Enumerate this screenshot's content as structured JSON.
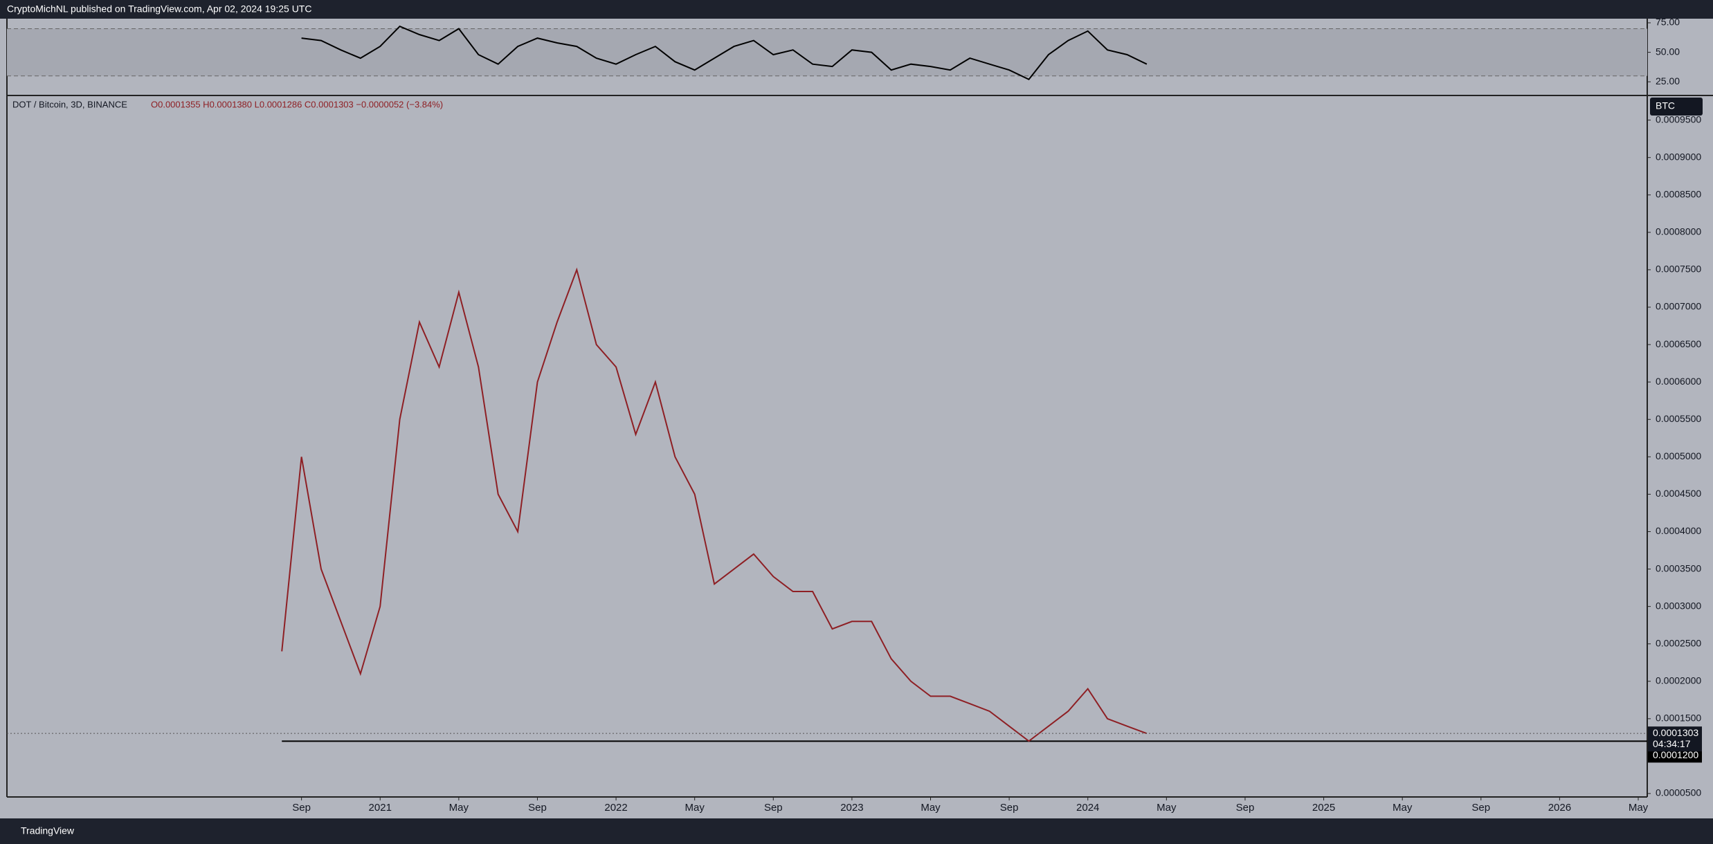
{
  "header": {
    "title": "CryptoMichNL published on TradingView.com, Apr 02, 2024 19:25 UTC"
  },
  "chart_data": [
    {
      "type": "line",
      "x": [
        "2020-08",
        "2020-09",
        "2020-10",
        "2020-11",
        "2020-12",
        "2021-01",
        "2021-02",
        "2021-03",
        "2021-04",
        "2021-05",
        "2021-06",
        "2021-07",
        "2021-08",
        "2021-09",
        "2021-10",
        "2021-11",
        "2021-12",
        "2022-01",
        "2022-02",
        "2022-03",
        "2022-04",
        "2022-05",
        "2022-06",
        "2022-07",
        "2022-08",
        "2022-09",
        "2022-10",
        "2022-11",
        "2022-12",
        "2023-01",
        "2023-02",
        "2023-03",
        "2023-04",
        "2023-05",
        "2023-06",
        "2023-07",
        "2023-08",
        "2023-09",
        "2023-10",
        "2023-11",
        "2023-12",
        "2024-01",
        "2024-02",
        "2024-03",
        "2024-04"
      ],
      "series": [
        {
          "color": "#000000",
          "values": [
            null,
            62,
            60,
            52,
            45,
            55,
            72,
            65,
            60,
            70,
            48,
            40,
            55,
            62,
            58,
            55,
            45,
            40,
            48,
            55,
            42,
            35,
            45,
            55,
            60,
            48,
            52,
            40,
            38,
            52,
            50,
            35,
            40,
            38,
            35,
            45,
            40,
            35,
            27,
            48,
            60,
            68,
            52,
            48,
            40
          ]
        }
      ],
      "band": [
        30,
        70
      ],
      "band_color": "#a5a8b1",
      "xlim": [
        "2019-07",
        "2026-05"
      ],
      "ylim": [
        14,
        78.5
      ],
      "yticks": [
        {
          "value": 75,
          "label": "75.00"
        },
        {
          "value": 50,
          "label": "50.00"
        },
        {
          "value": 25,
          "label": "25.00"
        }
      ]
    },
    {
      "type": "line",
      "title": "DOT / Bitcoin, 3D, BINANCE",
      "ohlc_text": "O0.0001355 H0.0001380 L0.0001286 C0.0001303 −0.0000052 (−3.84%)",
      "currency": "BTC",
      "x": [
        "2020-08",
        "2020-09",
        "2020-10",
        "2020-11",
        "2020-12",
        "2021-01",
        "2021-02",
        "2021-03",
        "2021-04",
        "2021-05",
        "2021-06",
        "2021-07",
        "2021-08",
        "2021-09",
        "2021-10",
        "2021-11",
        "2021-12",
        "2022-01",
        "2022-02",
        "2022-03",
        "2022-04",
        "2022-05",
        "2022-06",
        "2022-07",
        "2022-08",
        "2022-09",
        "2022-10",
        "2022-11",
        "2022-12",
        "2023-01",
        "2023-02",
        "2023-03",
        "2023-04",
        "2023-05",
        "2023-06",
        "2023-07",
        "2023-08",
        "2023-09",
        "2023-10",
        "2023-11",
        "2023-12",
        "2024-01",
        "2024-02",
        "2024-03",
        "2024-04"
      ],
      "series": [
        {
          "color": "#8e1f24",
          "values": [
            0.00024,
            0.0005,
            0.00035,
            0.00028,
            0.00021,
            0.0003,
            0.00055,
            0.00068,
            0.00062,
            0.00072,
            0.00062,
            0.00045,
            0.0004,
            0.0006,
            0.00068,
            0.00075,
            0.00065,
            0.00062,
            0.00053,
            0.0006,
            0.0005,
            0.00045,
            0.00033,
            0.00035,
            0.00037,
            0.00034,
            0.00032,
            0.00032,
            0.00027,
            0.00028,
            0.00028,
            0.00023,
            0.0002,
            0.00018,
            0.00018,
            0.00017,
            0.00016,
            0.00014,
            0.00012,
            0.00014,
            0.00016,
            0.00019,
            0.00015,
            0.00014,
            0.0001303
          ]
        }
      ],
      "last_price": {
        "value": 0.0001303,
        "label": "0.0001303"
      },
      "countdown": "04:34:17",
      "horizontal_line": {
        "value": 0.00012,
        "label": "0.0001200"
      },
      "xlim": [
        "2019-07",
        "2026-05"
      ],
      "ylim": [
        4.54e-05,
        0.000982
      ],
      "yticks": [
        {
          "value": 5e-05,
          "label": "0.0000500"
        },
        {
          "value": 0.00015,
          "label": "0.0001500"
        },
        {
          "value": 0.0002,
          "label": "0.0002000"
        },
        {
          "value": 0.00025,
          "label": "0.0002500"
        },
        {
          "value": 0.0003,
          "label": "0.0003000"
        },
        {
          "value": 0.00035,
          "label": "0.0003500"
        },
        {
          "value": 0.0004,
          "label": "0.0004000"
        },
        {
          "value": 0.00045,
          "label": "0.0004500"
        },
        {
          "value": 0.0005,
          "label": "0.0005000"
        },
        {
          "value": 0.00055,
          "label": "0.0005500"
        },
        {
          "value": 0.0006,
          "label": "0.0006000"
        },
        {
          "value": 0.00065,
          "label": "0.0006500"
        },
        {
          "value": 0.0007,
          "label": "0.0007000"
        },
        {
          "value": 0.00075,
          "label": "0.0007500"
        },
        {
          "value": 0.0008,
          "label": "0.0008000"
        },
        {
          "value": 0.00085,
          "label": "0.0008500"
        },
        {
          "value": 0.0009,
          "label": "0.0009000"
        },
        {
          "value": 0.00095,
          "label": "0.0009500"
        }
      ],
      "xticks": [
        {
          "value": "2020-09",
          "label": "Sep"
        },
        {
          "value": "2021-01",
          "label": "2021"
        },
        {
          "value": "2021-05",
          "label": "May"
        },
        {
          "value": "2021-09",
          "label": "Sep"
        },
        {
          "value": "2022-01",
          "label": "2022"
        },
        {
          "value": "2022-05",
          "label": "May"
        },
        {
          "value": "2022-09",
          "label": "Sep"
        },
        {
          "value": "2023-01",
          "label": "2023"
        },
        {
          "value": "2023-05",
          "label": "May"
        },
        {
          "value": "2023-09",
          "label": "Sep"
        },
        {
          "value": "2024-01",
          "label": "2024"
        },
        {
          "value": "2024-05",
          "label": "May"
        },
        {
          "value": "2024-09",
          "label": "Sep"
        },
        {
          "value": "2025-01",
          "label": "2025"
        },
        {
          "value": "2025-05",
          "label": "May"
        },
        {
          "value": "2025-09",
          "label": "Sep"
        },
        {
          "value": "2026-01",
          "label": "2026"
        },
        {
          "value": "2026-05",
          "label": "May"
        }
      ]
    }
  ],
  "footer": {
    "brand": "TradingView"
  }
}
